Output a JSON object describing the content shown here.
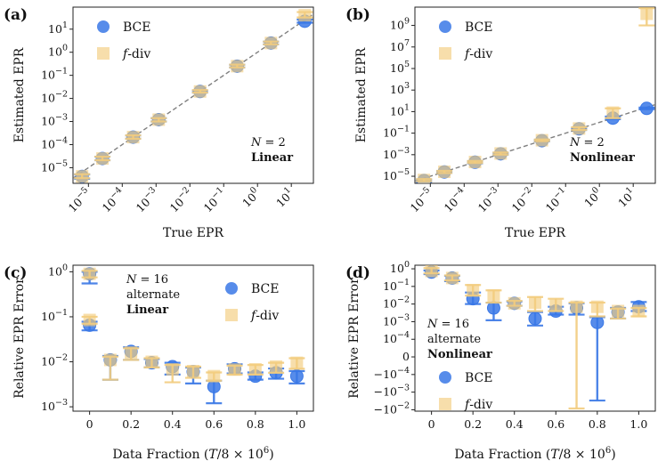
{
  "colors": {
    "bce": "#3a78e6",
    "fdiv": "#f2cc7e",
    "guide": "#7f7f7f",
    "axis": "#222222"
  },
  "chart_data": [
    {
      "id": "a",
      "panel_label": "(a)",
      "type": "scatter",
      "xlabel": "True EPR",
      "ylabel": "Estimated EPR",
      "xscale": "log",
      "yscale": "log",
      "xlim": [
        3.5e-06,
        45
      ],
      "ylim": [
        2.1e-06,
        90
      ],
      "xticks": [
        1e-05,
        0.0001,
        0.001,
        0.01,
        0.1,
        1,
        10
      ],
      "xtick_labels": [
        "10^{-5}",
        "10^{-4}",
        "10^{-3}",
        "10^{-2}",
        "10^{-1}",
        "10^{0}",
        "10^{1}"
      ],
      "yticks": [
        1e-05,
        0.0001,
        0.001,
        0.01,
        0.1,
        1,
        10
      ],
      "ytick_labels": [
        "10^{-5}",
        "10^{-4}",
        "10^{-3}",
        "10^{-2}",
        "10^{-1}",
        "10^{0}",
        "10^{1}"
      ],
      "diagonal": true,
      "legend": {
        "bce": "BCE",
        "fdiv_prefix": "f",
        "fdiv_suffix": "-div"
      },
      "annotation": {
        "line1": "N = 2",
        "line2": "Linear"
      },
      "series": [
        {
          "name": "BCE",
          "x": [
            6.5e-06,
            2.6e-05,
            0.00021,
            0.0012,
            0.02,
            0.25,
            2.5,
            25
          ],
          "y": [
            4.2e-06,
            2.5e-05,
            0.00021,
            0.0012,
            0.02,
            0.25,
            2.5,
            22
          ],
          "ylow": [
            3.3e-06,
            2.1e-05,
            0.00018,
            0.001,
            0.018,
            0.22,
            2.2,
            19
          ],
          "yhigh": [
            5.1e-06,
            3e-05,
            0.00025,
            0.0014,
            0.022,
            0.29,
            2.9,
            26
          ]
        },
        {
          "name": "f-div",
          "x": [
            6.5e-06,
            2.6e-05,
            0.00021,
            0.0012,
            0.02,
            0.25,
            2.5,
            25
          ],
          "y": [
            4.2e-06,
            2.5e-05,
            0.00021,
            0.0012,
            0.02,
            0.25,
            2.5,
            40
          ],
          "ylow": [
            3.5e-06,
            2.1e-05,
            0.00018,
            0.001,
            0.018,
            0.22,
            2.2,
            32
          ],
          "yhigh": [
            5.2e-06,
            3e-05,
            0.00025,
            0.0014,
            0.023,
            0.29,
            2.9,
            55
          ]
        }
      ]
    },
    {
      "id": "b",
      "panel_label": "(b)",
      "type": "scatter",
      "xlabel": "True EPR",
      "ylabel": "Estimated EPR",
      "xscale": "log",
      "yscale": "log",
      "xlim": [
        3.5e-06,
        45
      ],
      "ylim": [
        2.2e-06,
        50000000000
      ],
      "xticks": [
        1e-05,
        0.0001,
        0.001,
        0.01,
        0.1,
        1,
        10
      ],
      "xtick_labels": [
        "10^{-5}",
        "10^{-4}",
        "10^{-3}",
        "10^{-2}",
        "10^{-1}",
        "10^{0}",
        "10^{1}"
      ],
      "yticks": [
        1e-05,
        0.001,
        0.1,
        10,
        1000,
        100000,
        10000000,
        1000000000
      ],
      "ytick_labels": [
        "10^{-5}",
        "10^{-3}",
        "10^{-1}",
        "10^{1}",
        "10^{3}",
        "10^{5}",
        "10^{7}",
        "10^{9}"
      ],
      "diagonal": true,
      "legend": {
        "bce": "BCE",
        "fdiv_prefix": "f",
        "fdiv_suffix": "-div"
      },
      "annotation": {
        "line1": "N = 2",
        "line2": "Nonlinear"
      },
      "series": [
        {
          "name": "BCE",
          "x": [
            6.5e-06,
            2.6e-05,
            0.00021,
            0.0012,
            0.02,
            0.25,
            2.5,
            25
          ],
          "y": [
            4e-06,
            2.5e-05,
            0.0002,
            0.0012,
            0.02,
            0.25,
            2.5,
            20
          ],
          "ylow": [
            3e-06,
            2e-05,
            0.00016,
            0.001,
            0.017,
            0.2,
            2.0,
            17
          ],
          "yhigh": [
            5e-06,
            3e-05,
            0.00025,
            0.0015,
            0.024,
            0.3,
            3.5,
            24
          ]
        },
        {
          "name": "f-div",
          "x": [
            6.5e-06,
            2.6e-05,
            0.00021,
            0.0012,
            0.02,
            0.25,
            2.5,
            25
          ],
          "y": [
            4.5e-06,
            2.6e-05,
            0.00021,
            0.0013,
            0.022,
            0.27,
            8,
            12000000000
          ],
          "ylow": [
            3.5e-06,
            2e-05,
            0.00017,
            0.001,
            0.018,
            0.2,
            2.5,
            1000000000
          ],
          "yhigh": [
            5.5e-06,
            3.2e-05,
            0.00026,
            0.0016,
            0.026,
            0.35,
            20,
            40000000000
          ]
        }
      ]
    },
    {
      "id": "c",
      "panel_label": "(c)",
      "type": "scatter",
      "xlabel": "Data Fraction (T/8 × 10^6)",
      "ylabel": "Relative EPR Error",
      "xscale": "linear",
      "yscale": "log",
      "xlim": [
        -0.08,
        1.08
      ],
      "ylim": [
        0.0008,
        1.4
      ],
      "xticks": [
        0,
        0.2,
        0.4,
        0.6,
        0.8,
        1.0
      ],
      "xtick_labels": [
        "0",
        "0.2",
        "0.4",
        "0.6",
        "0.8",
        "1.0"
      ],
      "yticks": [
        0.001,
        0.01,
        0.1,
        1
      ],
      "ytick_labels": [
        "10^{-3}",
        "10^{-2}",
        "10^{-1}",
        "10^{0}"
      ],
      "diagonal": false,
      "legend": {
        "bce": "BCE",
        "fdiv_prefix": "f",
        "fdiv_suffix": "-div"
      },
      "annotation": {
        "line1": "N = 16",
        "line2": "alternate",
        "line3": "Linear"
      },
      "series": [
        {
          "name": "BCE",
          "x": [
            0,
            0.1,
            0.2,
            0.3,
            0.4,
            0.5,
            0.6,
            0.7,
            0.8,
            0.9,
            1.0
          ],
          "y": [
            0.9,
            0.011,
            0.017,
            0.0095,
            0.0078,
            0.006,
            0.0028,
            0.007,
            0.0048,
            0.0057,
            0.0048
          ],
          "ylow": [
            0.55,
            0.004,
            0.011,
            0.0075,
            0.0052,
            0.0033,
            0.0012,
            0.0055,
            0.004,
            0.0042,
            0.0033
          ],
          "yhigh": [
            1.0,
            0.0135,
            0.021,
            0.0115,
            0.0095,
            0.0075,
            0.0038,
            0.0088,
            0.0058,
            0.0071,
            0.0062
          ]
        },
        {
          "name": "f-div",
          "x": [
            0,
            0.1,
            0.2,
            0.3,
            0.4,
            0.5,
            0.6,
            0.7,
            0.8,
            0.9,
            1.0
          ],
          "y": [
            0.9,
            0.011,
            0.016,
            0.01,
            0.0068,
            0.0062,
            0.0048,
            0.0067,
            0.0068,
            0.0078,
            0.0095
          ],
          "ylow": [
            0.75,
            0.004,
            0.011,
            0.0075,
            0.0035,
            0.0044,
            0.0038,
            0.0052,
            0.0052,
            0.0057,
            0.007
          ],
          "yhigh": [
            1.05,
            0.013,
            0.02,
            0.012,
            0.0085,
            0.0078,
            0.0058,
            0.0082,
            0.0085,
            0.0095,
            0.012
          ]
        },
        {
          "name": "BCE-0",
          "x": [
            0
          ],
          "y": [
            0.065
          ],
          "ylow": [
            0.05
          ],
          "yhigh": [
            0.078
          ]
        },
        {
          "name": "f-div-0",
          "x": [
            0
          ],
          "y": [
            0.085
          ],
          "ylow": [
            0.07
          ],
          "yhigh": [
            0.1
          ]
        }
      ]
    },
    {
      "id": "d",
      "panel_label": "(d)",
      "type": "scatter",
      "xlabel": "Data Fraction (T/8 × 10^6)",
      "ylabel": "Relative EPR Error",
      "xscale": "symlog",
      "linthresh": 0.0001,
      "xscale_note": "x is linear; y is symmetric log",
      "xlim": [
        -0.08,
        1.08
      ],
      "ylim": [
        -0.012,
        1.6
      ],
      "xticks": [
        0,
        0.2,
        0.4,
        0.6,
        0.8,
        1.0
      ],
      "xtick_labels": [
        "0",
        "0.2",
        "0.4",
        "0.6",
        "0.8",
        "1.0"
      ],
      "yticks": [
        1,
        0.1,
        0.01,
        0.001,
        0.0001,
        0,
        -0.0001,
        -0.001,
        -0.01
      ],
      "ytick_labels": [
        "10^{0}",
        "10^{-1}",
        "10^{-2}",
        "10^{-3}",
        "10^{-4}",
        "0",
        "−10^{-4}",
        "−10^{-3}",
        "−10^{-2}"
      ],
      "diagonal": false,
      "legend": {
        "bce": "BCE",
        "fdiv_prefix": "f",
        "fdiv_suffix": "-div"
      },
      "annotation": {
        "line1": "N = 16",
        "line2": "alternate",
        "line3": "Nonlinear"
      },
      "series": [
        {
          "name": "BCE",
          "x": [
            0,
            0.1,
            0.2,
            0.3,
            0.4,
            0.5,
            0.6,
            0.7,
            0.8,
            0.9,
            1.0
          ],
          "y": [
            0.65,
            0.3,
            0.02,
            0.006,
            0.011,
            0.0015,
            0.004,
            0.006,
            0.0009,
            0.0035,
            0.007
          ],
          "ylow": [
            0.5,
            0.2,
            0.01,
            0.0012,
            0.008,
            0.0006,
            0.0025,
            0.0025,
            -0.003,
            0.0015,
            0.004
          ],
          "yhigh": [
            0.8,
            0.4,
            0.045,
            0.012,
            0.014,
            0.0035,
            0.007,
            0.011,
            0.0018,
            0.006,
            0.013
          ]
        },
        {
          "name": "f-div",
          "x": [
            0,
            0.1,
            0.2,
            0.3,
            0.4,
            0.5,
            0.6,
            0.7,
            0.8,
            0.9,
            1.0
          ],
          "y": [
            0.75,
            0.3,
            0.06,
            0.03,
            0.011,
            0.012,
            0.008,
            0.007,
            0.007,
            0.004,
            0.004
          ],
          "ylow": [
            0.55,
            0.22,
            0.03,
            0.012,
            0.008,
            0.004,
            0.004,
            -0.0085,
            0.002,
            0.0015,
            0.002
          ],
          "yhigh": [
            1.1,
            0.42,
            0.12,
            0.06,
            0.015,
            0.025,
            0.02,
            0.012,
            0.012,
            0.0055,
            0.006
          ]
        }
      ]
    }
  ]
}
